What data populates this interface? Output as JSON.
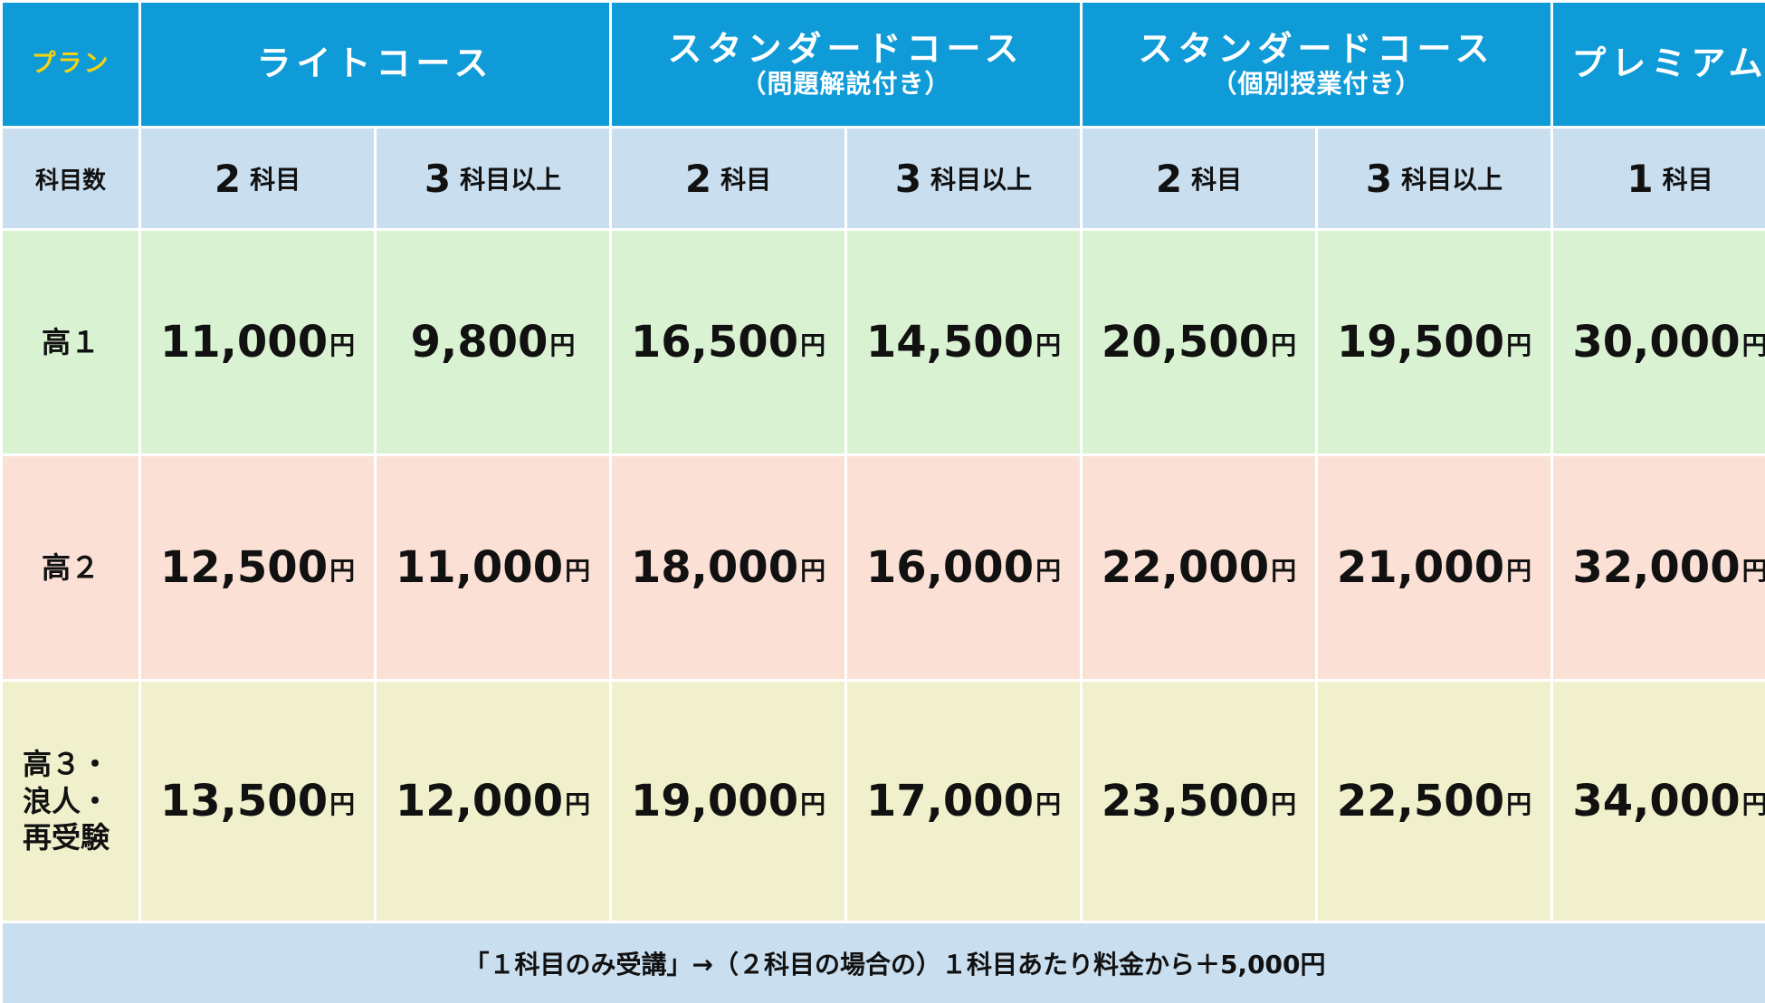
{
  "header": {
    "plan_label": "プラン",
    "courses": [
      {
        "title": "ライトコース",
        "subtitle": ""
      },
      {
        "title": "スタンダードコース",
        "subtitle": "（問題解説付き）"
      },
      {
        "title": "スタンダードコース",
        "subtitle": "（個別授業付き）"
      },
      {
        "title": "プレミアム",
        "subtitle": ""
      }
    ]
  },
  "subjects_row": {
    "label": "科目数",
    "cols": [
      {
        "num": "2",
        "text": "科目"
      },
      {
        "num": "3",
        "text": "科目以上"
      },
      {
        "num": "2",
        "text": "科目"
      },
      {
        "num": "3",
        "text": "科目以上"
      },
      {
        "num": "2",
        "text": "科目"
      },
      {
        "num": "3",
        "text": "科目以上"
      },
      {
        "num": "1",
        "text": "科目"
      }
    ]
  },
  "yen": "円",
  "rows": [
    {
      "grade_lines": [
        "高１"
      ],
      "prices": [
        "11,000",
        "9,800",
        "16,500",
        "14,500",
        "20,500",
        "19,500",
        "30,000"
      ]
    },
    {
      "grade_lines": [
        "高２"
      ],
      "prices": [
        "12,500",
        "11,000",
        "18,000",
        "16,000",
        "22,000",
        "21,000",
        "32,000"
      ]
    },
    {
      "grade_lines": [
        "高３・",
        "浪人・",
        "再受験"
      ],
      "prices": [
        "13,500",
        "12,000",
        "19,000",
        "17,000",
        "23,500",
        "22,500",
        "34,000"
      ]
    }
  ],
  "footer_note": "「１科目のみ受講」→（２科目の場合の）１科目あたり料金から＋5,000円",
  "colors": {
    "header_blue": "#0f9bd7",
    "plan_label_yellow": "#f5d40f",
    "subject_row_blue": "#c9deef",
    "row1_green": "#d9f2d2",
    "row2_pink": "#fbe0d6",
    "row3_yellow": "#f0f0cc"
  }
}
